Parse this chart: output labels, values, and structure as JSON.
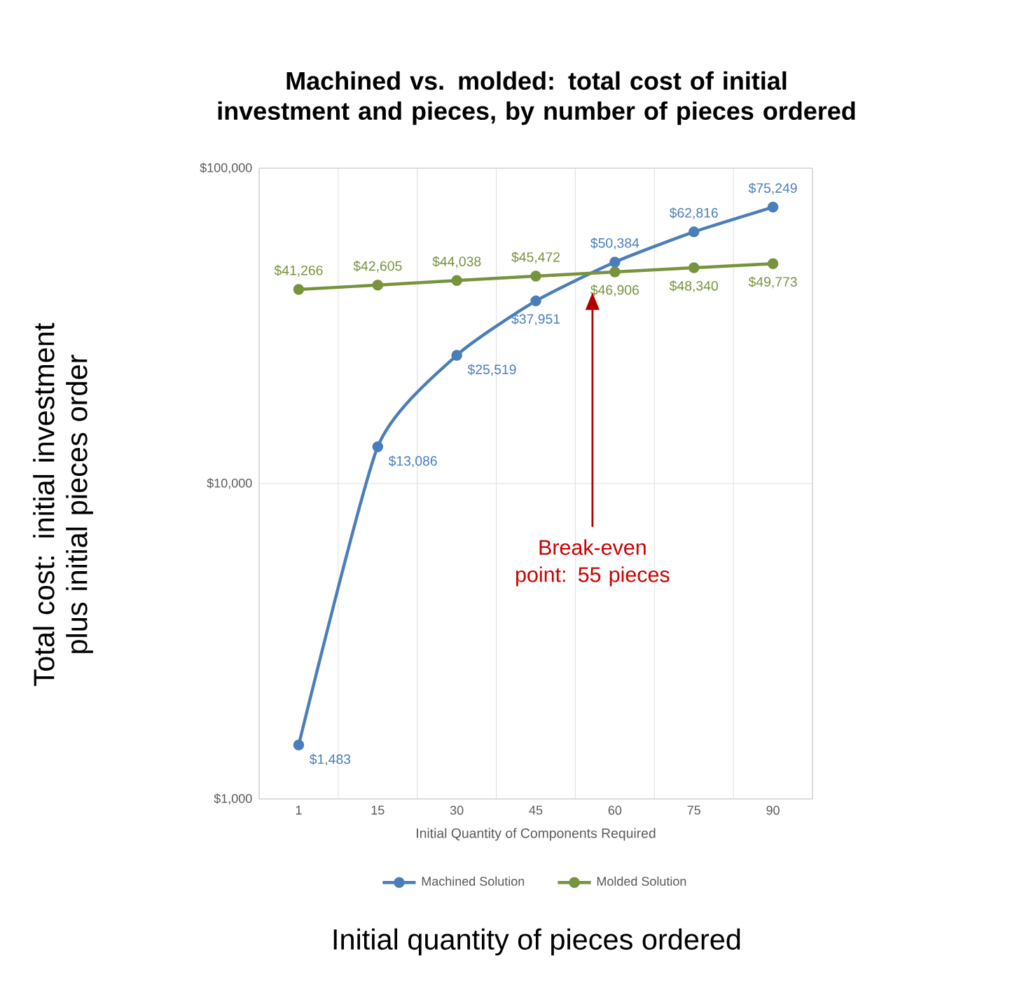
{
  "chart_data": {
    "type": "line",
    "title": "Machined vs. molded: total cost of initial investment and pieces, by number of pieces ordered",
    "xlabel": "Initial Quantity of Components Required",
    "ylabel": "Total cost: initial investment plus initial pieces order",
    "categories": [
      "1",
      "15",
      "30",
      "45",
      "60",
      "75",
      "90"
    ],
    "series": [
      {
        "name": "Machined Solution",
        "color": "#4a7ebb",
        "values": [
          1483,
          13086,
          25519,
          37951,
          50384,
          62816,
          75249
        ],
        "value_labels": [
          "$1,483",
          "$13,086",
          "$25,519",
          "$37,951",
          "$50,384",
          "$62,816",
          "$75,249"
        ]
      },
      {
        "name": "Molded Solution",
        "color": "#77933c",
        "values": [
          41266,
          42605,
          44038,
          45472,
          46906,
          48340,
          49773
        ],
        "value_labels": [
          "$41,266",
          "$42,605",
          "$44,038",
          "$45,472",
          "$46,906",
          "$48,340",
          "$49,773"
        ]
      }
    ],
    "log": "y",
    "ylim": [
      1000,
      100000
    ],
    "yticks": [
      {
        "value": 1000,
        "label": "$1,000"
      },
      {
        "value": 10000,
        "label": "$10,000"
      },
      {
        "value": 100000,
        "label": "$100,000"
      }
    ],
    "grid": true,
    "legend": "bottom",
    "marker": "circle",
    "line_style": "solid",
    "annotations": [
      "Break-even point: 55 pieces",
      "Initial quantity of pieces ordered"
    ]
  }
}
